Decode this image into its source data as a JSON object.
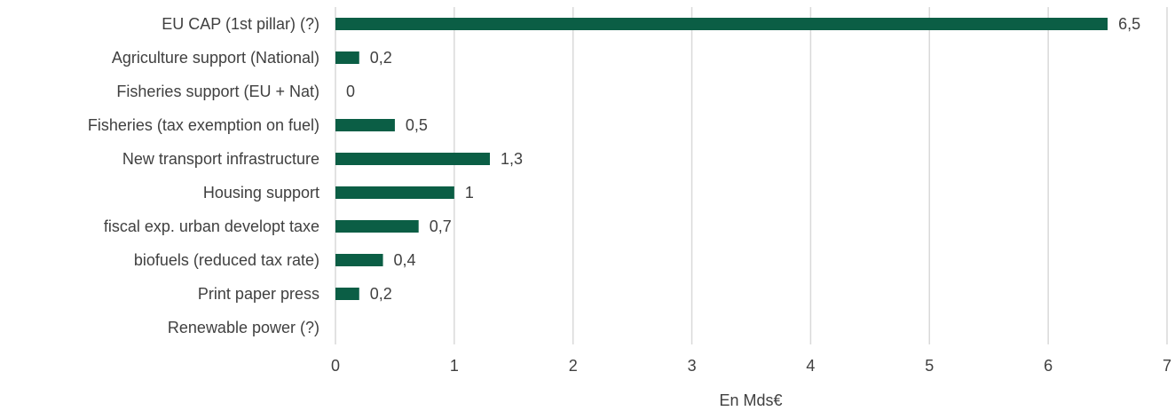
{
  "chart_data": {
    "type": "barh",
    "categories": [
      "EU CAP (1st pillar) (?)",
      "Agriculture support (National)",
      "Fisheries support (EU + Nat)",
      "Fisheries (tax exemption on fuel)",
      "New transport infrastructure",
      "Housing support",
      "fiscal exp. urban developt taxe",
      "biofuels (reduced tax rate)",
      "Print paper press",
      "Renewable power (?)"
    ],
    "values": [
      6.5,
      0.2,
      0,
      0.5,
      1.3,
      1,
      0.7,
      0.4,
      0.2,
      null
    ],
    "value_labels": [
      "6,5",
      "0,2",
      "0",
      "0,5",
      "1,3",
      "1",
      "0,7",
      "0,4",
      "0,2",
      null
    ],
    "color": "#0b5e45",
    "xlabel": "En Mds€",
    "xlim": [
      0,
      7
    ],
    "xticks": [
      0,
      1,
      2,
      3,
      4,
      5,
      6,
      7
    ],
    "grid": true
  }
}
